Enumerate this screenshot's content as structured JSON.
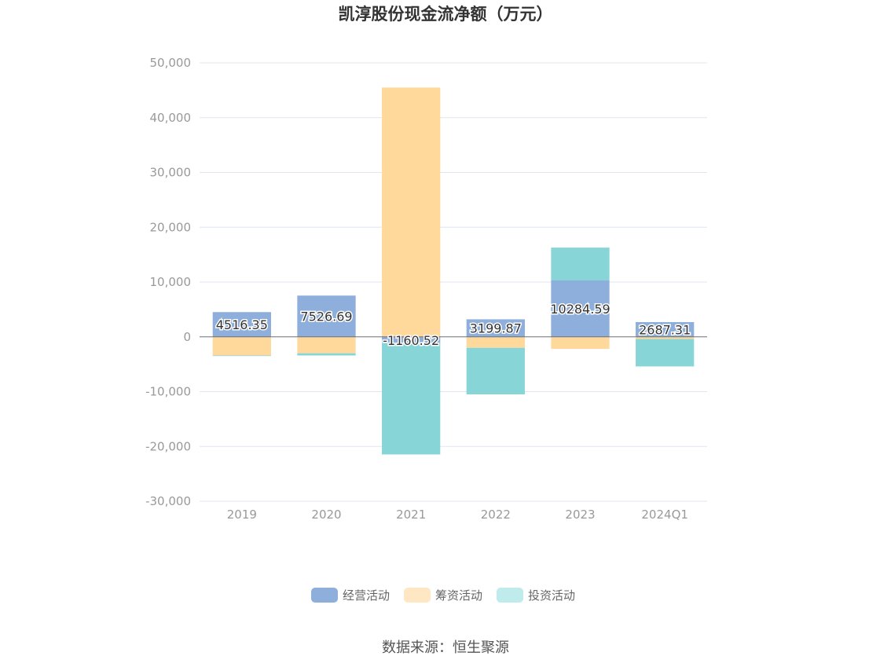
{
  "chart_data": {
    "type": "bar",
    "stacked": true,
    "title": "凯淳股份现金流净额（万元）",
    "categories": [
      "2019",
      "2020",
      "2021",
      "2022",
      "2023",
      "2024Q1"
    ],
    "ylim": [
      -30000,
      50000
    ],
    "yticks": [
      50000,
      40000,
      30000,
      20000,
      10000,
      0,
      -10000,
      -20000,
      -30000
    ],
    "ytick_labels": [
      "50,000",
      "40,000",
      "30,000",
      "20,000",
      "10,000",
      "0",
      "-10,000",
      "-20,000",
      "-30,000"
    ],
    "grid": true,
    "legend_position": "bottom",
    "series": [
      {
        "name": "经营活动",
        "color": "#8eaedb",
        "values": [
          4516.35,
          7526.69,
          -1160.52,
          3199.87,
          10284.59,
          2687.31
        ],
        "labels": [
          "4516.35",
          "7526.69",
          "-1160.52",
          "3199.87",
          "10284.59",
          "2687.31"
        ]
      },
      {
        "name": "筹资活动",
        "color": "#ffd99c",
        "legend_color": "#ffe7c4",
        "values": [
          -3400,
          -3000,
          45500,
          -2000,
          -2200,
          -400
        ]
      },
      {
        "name": "投资活动",
        "color": "#88d5d8",
        "legend_color": "#c0ebec",
        "values": [
          -100,
          -400,
          -20300,
          -8500,
          6000,
          -5000
        ]
      }
    ],
    "source": "数据来源：恒生聚源"
  }
}
